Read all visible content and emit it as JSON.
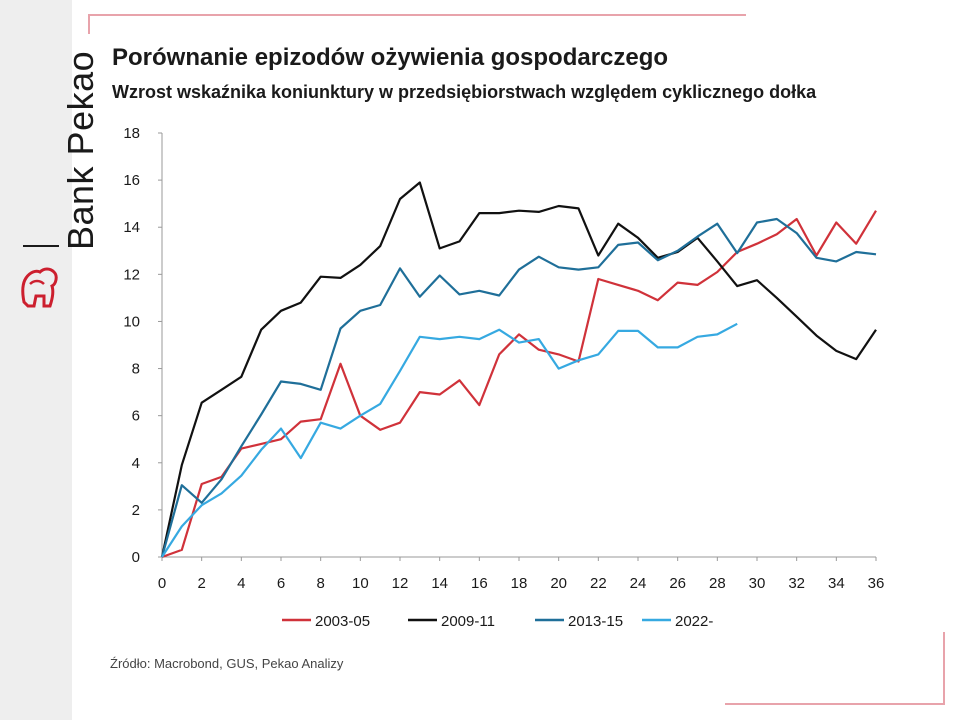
{
  "brand": {
    "name": "Bank Pekao",
    "logo_icon": "bison-icon",
    "accent": "#cc1f2e"
  },
  "header": {
    "title": "Porównanie epizodów ożywienia gospodarczego",
    "subtitle": "Wzrost wskaźnika koniunktury w przedsiębiorstwach względem cyklicznego dołka"
  },
  "footer": {
    "source": "Źródło: Macrobond, GUS, Pekao Analizy"
  },
  "chart_data": {
    "type": "line",
    "title": "Porównanie epizodów ożywienia gospodarczego",
    "subtitle": "Wzrost wskaźnika koniunktury w przedsiębiorstwach względem cyklicznego dołka",
    "xlabel": "",
    "ylabel": "",
    "xlim": [
      0,
      36
    ],
    "ylim": [
      0,
      18
    ],
    "xticks": [
      "0",
      "2",
      "4",
      "6",
      "8",
      "10",
      "12",
      "14",
      "16",
      "18",
      "20",
      "22",
      "24",
      "26",
      "28",
      "30",
      "32",
      "34",
      "36"
    ],
    "yticks": [
      "0",
      "2",
      "4",
      "6",
      "8",
      "10",
      "12",
      "14",
      "16",
      "18"
    ],
    "grid": false,
    "legend": "bottom",
    "series": [
      {
        "name": "2003-05",
        "color": "#d0323a",
        "x": [
          0,
          1,
          2,
          3,
          4,
          5,
          6,
          7,
          8,
          9,
          10,
          11,
          12,
          13,
          14,
          15,
          16,
          17,
          18,
          19,
          20,
          21,
          22,
          23,
          24,
          25,
          26,
          27,
          28,
          29,
          30,
          31,
          32,
          33,
          34,
          35,
          36
        ],
        "values": [
          0,
          0.3,
          3.1,
          3.4,
          4.6,
          4.8,
          5.0,
          5.75,
          5.85,
          8.2,
          6.0,
          5.4,
          5.7,
          7.0,
          6.9,
          7.5,
          6.45,
          8.6,
          9.45,
          8.8,
          8.6,
          8.3,
          11.8,
          11.55,
          11.3,
          10.9,
          11.65,
          11.55,
          12.1,
          12.95,
          13.3,
          13.7,
          14.35,
          12.8,
          14.2,
          13.3,
          14.7
        ]
      },
      {
        "name": "2009-11",
        "color": "#111111",
        "x": [
          0,
          1,
          2,
          3,
          4,
          5,
          6,
          7,
          8,
          9,
          10,
          11,
          12,
          13,
          14,
          15,
          16,
          17,
          18,
          19,
          20,
          21,
          22,
          23,
          24,
          25,
          26,
          27,
          28,
          29,
          30,
          31,
          32,
          33,
          34,
          35,
          36
        ],
        "values": [
          0,
          3.9,
          6.55,
          7.1,
          7.65,
          9.65,
          10.45,
          10.8,
          11.9,
          11.85,
          12.4,
          13.2,
          15.2,
          15.9,
          13.1,
          13.4,
          14.6,
          14.6,
          14.7,
          14.65,
          14.9,
          14.8,
          12.8,
          14.15,
          13.55,
          12.7,
          12.95,
          13.55,
          12.55,
          11.5,
          11.75,
          11.0,
          10.2,
          9.4,
          8.75,
          8.4,
          9.65
        ]
      },
      {
        "name": "2013-15",
        "color": "#1f6f99",
        "x": [
          0,
          1,
          2,
          3,
          4,
          5,
          6,
          7,
          8,
          9,
          10,
          11,
          12,
          13,
          14,
          15,
          16,
          17,
          18,
          19,
          20,
          21,
          22,
          23,
          24,
          25,
          26,
          27,
          28,
          29,
          30,
          31,
          32,
          33,
          34,
          35,
          36
        ],
        "values": [
          0,
          3.05,
          2.3,
          3.3,
          4.7,
          6.05,
          7.45,
          7.35,
          7.1,
          9.7,
          10.45,
          10.7,
          12.25,
          11.05,
          11.95,
          11.15,
          11.3,
          11.1,
          12.2,
          12.75,
          12.3,
          12.2,
          12.3,
          13.25,
          13.35,
          12.6,
          13.0,
          13.6,
          14.15,
          12.9,
          14.2,
          14.35,
          13.75,
          12.7,
          12.55,
          12.95,
          12.85
        ]
      },
      {
        "name": "2022-",
        "color": "#36a9e1",
        "x": [
          0,
          1,
          2,
          3,
          4,
          5,
          6,
          7,
          8,
          9,
          10,
          11,
          12,
          13,
          14,
          15,
          16,
          17,
          18,
          19,
          20,
          21,
          22,
          23,
          24,
          25,
          26,
          27,
          28,
          29
        ],
        "values": [
          0,
          1.3,
          2.2,
          2.7,
          3.45,
          4.55,
          5.45,
          4.2,
          5.7,
          5.45,
          6.0,
          6.5,
          7.9,
          9.35,
          9.25,
          9.35,
          9.25,
          9.65,
          9.1,
          9.25,
          8.0,
          8.35,
          8.6,
          9.6,
          9.6,
          8.9,
          8.9,
          9.35,
          9.45,
          9.9
        ]
      }
    ]
  }
}
